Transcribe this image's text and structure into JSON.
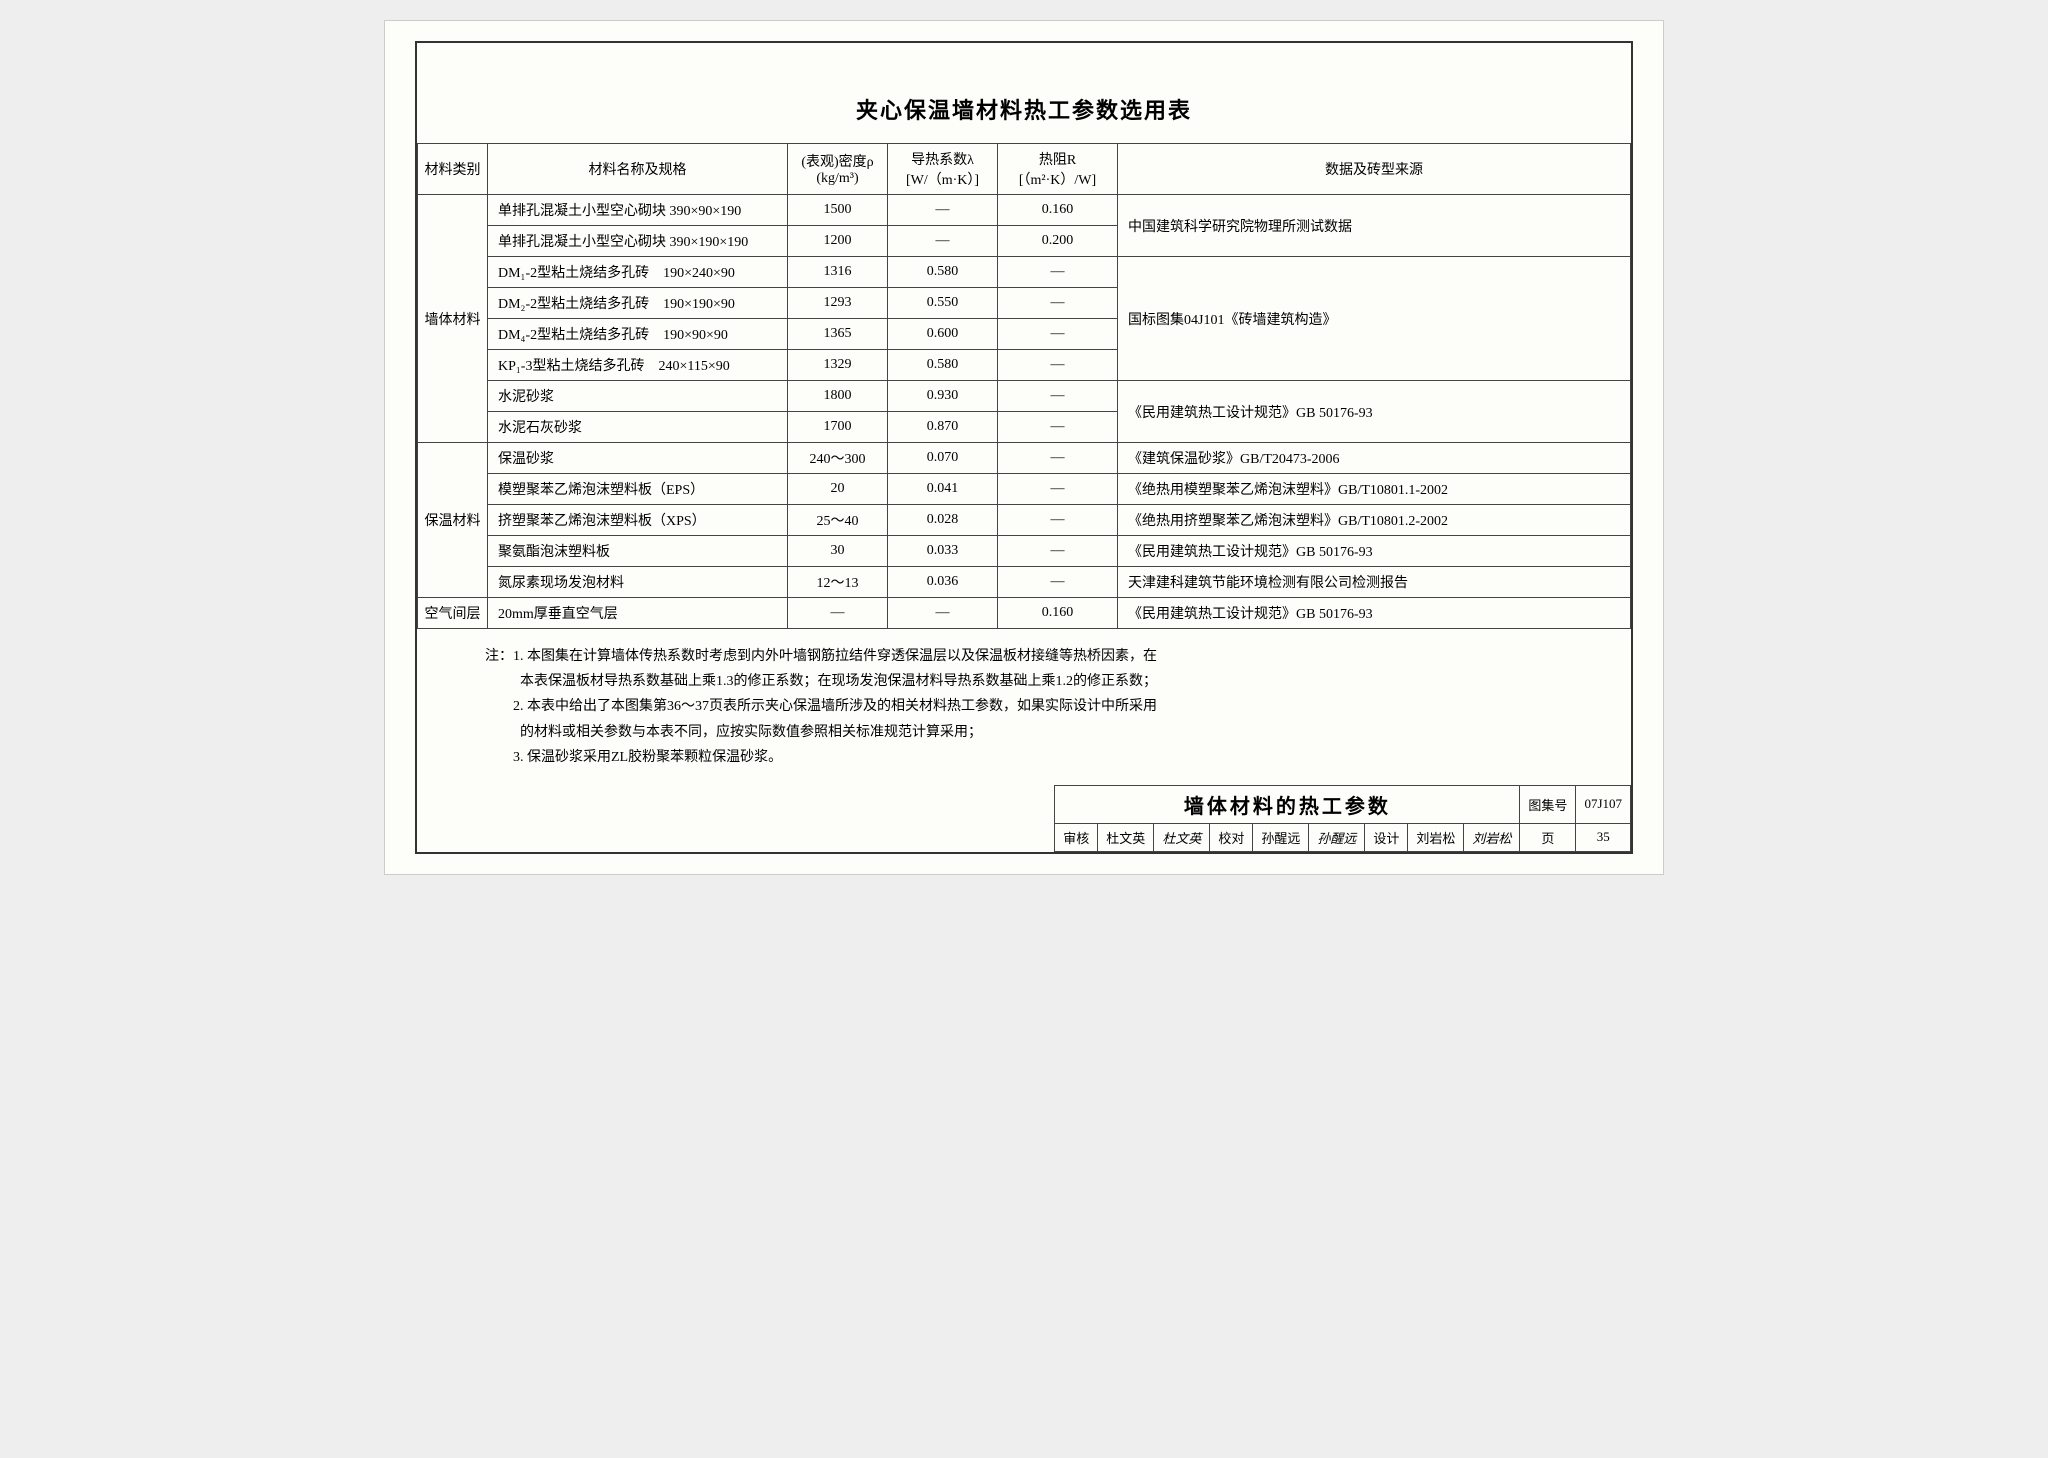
{
  "title": "夹心保温墙材料热工参数选用表",
  "columns": {
    "cat": "材料类别",
    "name": "材料名称及规格",
    "density_l1": "(表观)密度ρ",
    "density_l2": "(kg/m³)",
    "lambda_l1": "导热系数λ",
    "lambda_l2": "[W/（m·K）]",
    "r_l1": "热阻R",
    "r_l2": "[（m²·K）/W]",
    "source": "数据及砖型来源"
  },
  "cat1": "墙体材料",
  "cat2": "保温材料",
  "cat3": "空气间层",
  "rows": {
    "r1": {
      "name": "单排孔混凝土小型空心砌块 390×90×190",
      "d": "1500",
      "l": "—",
      "r": "0.160"
    },
    "r2": {
      "name": "单排孔混凝土小型空心砌块 390×190×190",
      "d": "1200",
      "l": "—",
      "r": "0.200"
    },
    "r3": {
      "name": "DM₁-2型粘土烧结多孔砖　190×240×90",
      "d": "1316",
      "l": "0.580",
      "r": "—"
    },
    "r4": {
      "name": "DM₂-2型粘土烧结多孔砖　190×190×90",
      "d": "1293",
      "l": "0.550",
      "r": "—"
    },
    "r5": {
      "name": "DM₄-2型粘土烧结多孔砖　190×90×90",
      "d": "1365",
      "l": "0.600",
      "r": "—"
    },
    "r6": {
      "name": "KP₁-3型粘土烧结多孔砖　240×115×90",
      "d": "1329",
      "l": "0.580",
      "r": "—"
    },
    "r7": {
      "name": "水泥砂浆",
      "d": "1800",
      "l": "0.930",
      "r": "—"
    },
    "r8": {
      "name": "水泥石灰砂浆",
      "d": "1700",
      "l": "0.870",
      "r": "—"
    },
    "r9": {
      "name": "保温砂浆",
      "d": "240～300",
      "l": "0.070",
      "r": "—"
    },
    "r10": {
      "name": "模塑聚苯乙烯泡沫塑料板（EPS）",
      "d": "20",
      "l": "0.041",
      "r": "—"
    },
    "r11": {
      "name": "挤塑聚苯乙烯泡沫塑料板（XPS）",
      "d": "25～40",
      "l": "0.028",
      "r": "—"
    },
    "r12": {
      "name": "聚氨酯泡沫塑料板",
      "d": "30",
      "l": "0.033",
      "r": "—"
    },
    "r13": {
      "name": "氮尿素现场发泡材料",
      "d": "12～13",
      "l": "0.036",
      "r": "—"
    },
    "r14": {
      "name": "20mm厚垂直空气层",
      "d": "—",
      "l": "—",
      "r": "0.160"
    }
  },
  "sources": {
    "s1": "中国建筑科学研究院物理所测试数据",
    "s2": "国标图集04J101《砖墙建筑构造》",
    "s3": "《民用建筑热工设计规范》GB 50176-93",
    "s4": "《建筑保温砂浆》GB/T20473-2006",
    "s5": "《绝热用模塑聚苯乙烯泡沫塑料》GB/T10801.1-2002",
    "s6": "《绝热用挤塑聚苯乙烯泡沫塑料》GB/T10801.2-2002",
    "s7": "《民用建筑热工设计规范》GB 50176-93",
    "s8": "天津建科建筑节能环境检测有限公司检测报告",
    "s9": "《民用建筑热工设计规范》GB 50176-93"
  },
  "notes": {
    "label": "注：",
    "n1a": "1. 本图集在计算墙体传热系数时考虑到内外叶墙钢筋拉结件穿透保温层以及保温板材接缝等热桥因素，在",
    "n1b": "本表保温板材导热系数基础上乘1.3的修正系数；在现场发泡保温材料导热系数基础上乘1.2的修正系数；",
    "n2a": "2. 本表中给出了本图集第36～37页表所示夹心保温墙所涉及的相关材料热工参数，如果实际设计中所采用",
    "n2b": "的材料或相关参数与本表不同，应按实际数值参照相关标准规范计算采用；",
    "n3": "3. 保温砂浆采用ZL胶粉聚苯颗粒保温砂浆。"
  },
  "titleblock": {
    "main": "墙体材料的热工参数",
    "atlasno_label": "图集号",
    "atlasno": "07J107",
    "page_label": "页",
    "page": "35",
    "审核_label": "审核",
    "审核_name": "杜文英",
    "审核_sig": "杜文英",
    "校对_label": "校对",
    "校对_name": "孙醒远",
    "校对_sig": "孙醒远",
    "设计_label": "设计",
    "设计_name": "刘岩松",
    "设计_sig": "刘岩松"
  }
}
